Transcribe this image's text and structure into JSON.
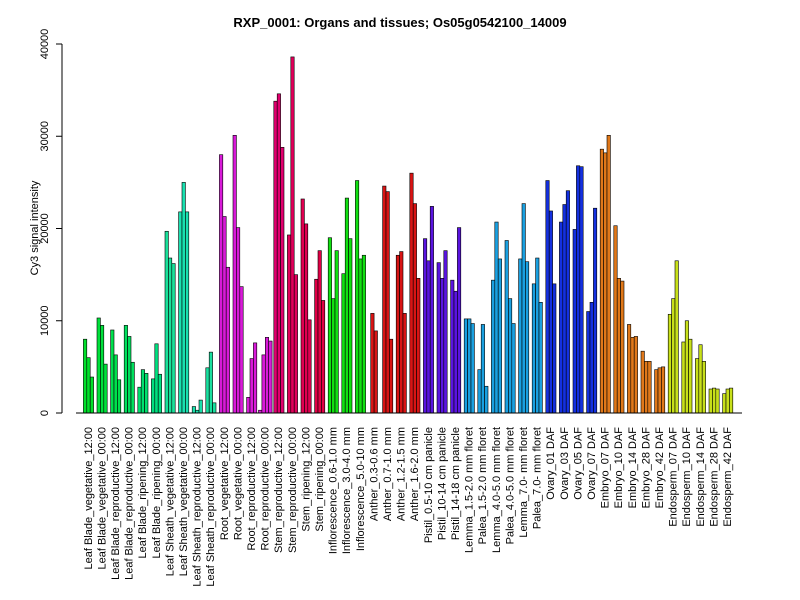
{
  "chart_data": {
    "type": "bar",
    "title": "RXP_0001: Organs and tissues; Os05g0542100_14009",
    "ylabel": "Cy3 signal intensity",
    "xlabel": "",
    "ylim": [
      0,
      40000
    ],
    "yticks": [
      0,
      10000,
      20000,
      30000,
      40000
    ],
    "grid": false,
    "legend": "none",
    "categories": [
      "Leaf Blade_vegetative_12:00",
      "Leaf Blade_vegetative_00:00",
      "Leaf Blade_reproductive_12:00",
      "Leaf Blade_reproductive_00:00",
      "Leaf Blade_ripening_12:00",
      "Leaf Blade_ripening_00:00",
      "Leaf Sheath_vegetative_12:00",
      "Leaf Sheath_vegetative_00:00",
      "Leaf Sheath_reproductive_12:00",
      "Leaf Sheath_reproductive_00:00",
      "Root_vegetative_12:00",
      "Root_vegetative_00:00",
      "Root_reproductive_12:00",
      "Root_reproductive_00:00",
      "Stem_reproductive_12:00",
      "Stem_reproductive_00:00",
      "Stem_ripening_12:00",
      "Stem_ripening_00:00",
      "Inflorescence_0.6-1.0 mm",
      "Inflorescence_3.0-4.0 mm",
      "Inflorescence_5.0-10 mm",
      "Anther_0.3-0.6 mm",
      "Anther_0.7-1.0 mm",
      "Anther_1.2-1.5 mm",
      "Anther_1.6-2.0 mm",
      "Pistil_0.5-10 cm panicle",
      "Pistil_10-14 cm panicle",
      "Pistil_14-18 cm panicle",
      "Lemma_1.5-2.0 mm floret",
      "Palea_1.5-2.0 mm floret",
      "Lemma_4.0-5.0 mm floret",
      "Palea_4.0-5.0 mm floret",
      "Lemma_7.0- mm floret",
      "Palea_7.0- mm floret",
      "Ovary_01 DAF",
      "Ovary_03 DAF",
      "Ovary_05 DAF",
      "Ovary_07 DAF",
      "Embryo_07 DAF",
      "Embryo_10 DAF",
      "Embryo_14 DAF",
      "Embryo_28 DAF",
      "Embryo_42 DAF",
      "Endosperm_07 DAF",
      "Endosperm_10 DAF",
      "Endosperm_14 DAF",
      "Endosperm_28 DAF",
      "Endosperm_42 DAF"
    ],
    "bar_values": [
      [
        8000,
        6000,
        3900
      ],
      [
        10300,
        9500,
        5300
      ],
      [
        9000,
        6300,
        3600
      ],
      [
        9500,
        8300,
        5500
      ],
      [
        2800,
        4700,
        4300
      ],
      [
        3700,
        7500,
        4200
      ],
      [
        19700,
        16800,
        16200
      ],
      [
        21800,
        25000,
        21800
      ],
      [
        700,
        300,
        1400
      ],
      [
        4900,
        6600,
        1100
      ],
      [
        28000,
        21300,
        15800
      ],
      [
        30100,
        20100,
        13700
      ],
      [
        1700,
        5900,
        7600
      ],
      [
        300,
        6300,
        8200,
        7800
      ],
      [
        33800,
        34600,
        28800
      ],
      [
        19300,
        38600,
        15000
      ],
      [
        23200,
        20500,
        10100
      ],
      [
        14500,
        17600,
        12200
      ],
      [
        19000,
        12400,
        17600
      ],
      [
        15100,
        23300,
        18900
      ],
      [
        25200,
        16700,
        17100
      ],
      [
        10800,
        8900
      ],
      [
        24600,
        24000,
        8000
      ],
      [
        17100,
        17500,
        10800
      ],
      [
        26000,
        22700,
        14600
      ],
      [
        18900,
        16500,
        22400
      ],
      [
        16300,
        14600,
        17600
      ],
      [
        14400,
        13200,
        20100
      ],
      [
        10200,
        10200,
        9700
      ],
      [
        4700,
        9600,
        2900
      ],
      [
        14400,
        20700,
        16700
      ],
      [
        18700,
        12400,
        9700
      ],
      [
        16700,
        22700,
        16400
      ],
      [
        14000,
        16800,
        12000
      ],
      [
        25200,
        21900,
        14000
      ],
      [
        20700,
        22600,
        24100
      ],
      [
        19900,
        26800,
        26700
      ],
      [
        11000,
        12000,
        22200
      ],
      [
        28600,
        28200,
        30100
      ],
      [
        20300,
        14600,
        14300
      ],
      [
        9600,
        8200,
        8300
      ],
      [
        6700,
        5600,
        5600
      ],
      [
        4700,
        4900,
        5000
      ],
      [
        10700,
        12400,
        16500
      ],
      [
        7700,
        10000,
        8000
      ],
      [
        5900,
        7400,
        5600
      ],
      [
        2600,
        2700,
        2600
      ],
      [
        2100,
        2600,
        2700
      ]
    ],
    "colors": [
      "#00e02a",
      "#00e03b",
      "#00e04c",
      "#00e05d",
      "#00e06e",
      "#00e080",
      "#1ae09a",
      "#1ae0b0",
      "#1ae0ab",
      "#1ae0a0",
      "#d81ad8",
      "#d81ad8",
      "#d81ad8",
      "#d81ad8",
      "#e0006e",
      "#e0005a",
      "#e00050",
      "#e00045",
      "#11e011",
      "#11e011",
      "#11e011",
      "#d81414",
      "#d81414",
      "#d81414",
      "#d81414",
      "#5a14e0",
      "#5a14e0",
      "#5a14e0",
      "#1aa0e0",
      "#1aa0e0",
      "#1aa0e0",
      "#1aa0e0",
      "#1aa0e0",
      "#1aa0e0",
      "#1430e0",
      "#1430e0",
      "#1430e0",
      "#1430e0",
      "#e0781a",
      "#e0781a",
      "#e0781a",
      "#e0781a",
      "#e0781a",
      "#c8e01a",
      "#c8e01a",
      "#c8e01a",
      "#c8e01a",
      "#c8e01a"
    ]
  }
}
